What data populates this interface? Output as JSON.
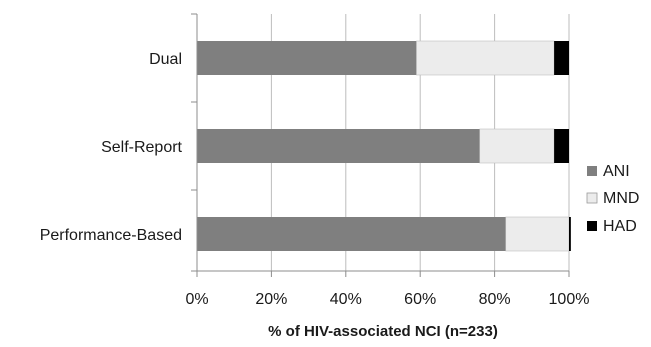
{
  "chart_data": {
    "type": "bar",
    "orientation": "horizontal",
    "stacked": "percent",
    "title": "",
    "xlabel": "% of HIV-associated NCI (n=233)",
    "ylabel": "",
    "xlim": [
      0,
      100
    ],
    "x_ticks": [
      "0%",
      "20%",
      "40%",
      "60%",
      "80%",
      "100%"
    ],
    "x_tick_values": [
      0,
      20,
      40,
      60,
      80,
      100
    ],
    "categories": [
      "Dual",
      "Self-Report",
      "Performance-Based"
    ],
    "series": [
      {
        "name": "ANI",
        "color": "#7f7f7f",
        "values": [
          59,
          76,
          83
        ]
      },
      {
        "name": "MND",
        "color": "#ececec",
        "values": [
          37,
          20,
          17
        ]
      },
      {
        "name": "HAD",
        "color": "#000000",
        "values": [
          4,
          4,
          0.5
        ]
      }
    ],
    "grid": true,
    "legend": "right"
  }
}
